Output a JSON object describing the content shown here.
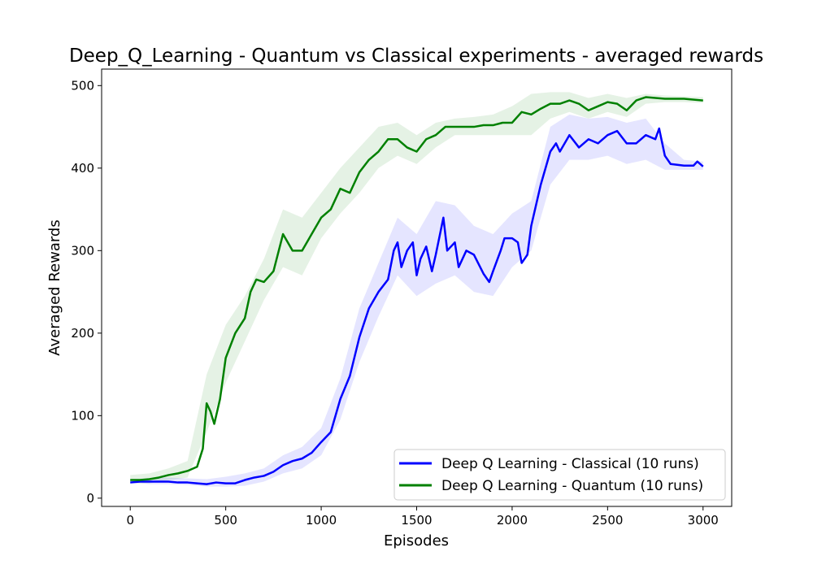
{
  "chart_data": {
    "type": "line",
    "title": "Deep_Q_Learning - Quantum vs Classical experiments - averaged rewards",
    "xlabel": "Episodes",
    "ylabel": "Averaged Rewards",
    "xlim": [
      -150,
      3150
    ],
    "ylim": [
      -10,
      520
    ],
    "xticks": [
      0,
      500,
      1000,
      1500,
      2000,
      2500,
      3000
    ],
    "yticks": [
      0,
      100,
      200,
      300,
      400,
      500
    ],
    "grid": false,
    "legend_position": "lower-right",
    "series": [
      {
        "name": "Deep Q Learning - Classical (10 runs)",
        "color": "#0000ff",
        "band_color": "#0000ff",
        "points": [
          [
            0,
            19
          ],
          [
            50,
            20
          ],
          [
            100,
            20
          ],
          [
            150,
            20
          ],
          [
            200,
            20
          ],
          [
            250,
            19
          ],
          [
            300,
            19
          ],
          [
            350,
            18
          ],
          [
            400,
            17
          ],
          [
            450,
            19
          ],
          [
            500,
            18
          ],
          [
            550,
            18
          ],
          [
            600,
            22
          ],
          [
            650,
            25
          ],
          [
            700,
            27
          ],
          [
            750,
            32
          ],
          [
            800,
            40
          ],
          [
            850,
            45
          ],
          [
            900,
            48
          ],
          [
            950,
            55
          ],
          [
            1000,
            68
          ],
          [
            1050,
            80
          ],
          [
            1100,
            120
          ],
          [
            1150,
            148
          ],
          [
            1200,
            195
          ],
          [
            1250,
            230
          ],
          [
            1300,
            250
          ],
          [
            1350,
            265
          ],
          [
            1380,
            300
          ],
          [
            1400,
            310
          ],
          [
            1420,
            280
          ],
          [
            1450,
            300
          ],
          [
            1480,
            310
          ],
          [
            1500,
            270
          ],
          [
            1520,
            290
          ],
          [
            1550,
            305
          ],
          [
            1580,
            275
          ],
          [
            1600,
            295
          ],
          [
            1640,
            340
          ],
          [
            1660,
            300
          ],
          [
            1700,
            310
          ],
          [
            1720,
            280
          ],
          [
            1760,
            300
          ],
          [
            1800,
            295
          ],
          [
            1850,
            272
          ],
          [
            1880,
            262
          ],
          [
            1900,
            275
          ],
          [
            1940,
            300
          ],
          [
            1960,
            315
          ],
          [
            2000,
            315
          ],
          [
            2030,
            310
          ],
          [
            2050,
            285
          ],
          [
            2080,
            295
          ],
          [
            2100,
            330
          ],
          [
            2150,
            380
          ],
          [
            2200,
            420
          ],
          [
            2230,
            430
          ],
          [
            2250,
            420
          ],
          [
            2300,
            440
          ],
          [
            2350,
            425
          ],
          [
            2400,
            435
          ],
          [
            2450,
            430
          ],
          [
            2500,
            440
          ],
          [
            2550,
            445
          ],
          [
            2600,
            430
          ],
          [
            2650,
            430
          ],
          [
            2700,
            440
          ],
          [
            2750,
            435
          ],
          [
            2770,
            448
          ],
          [
            2800,
            415
          ],
          [
            2830,
            405
          ],
          [
            2900,
            403
          ],
          [
            2950,
            403
          ],
          [
            2970,
            408
          ],
          [
            3000,
            402
          ]
        ],
        "band": [
          [
            0,
            19,
            23
          ],
          [
            100,
            17,
            24
          ],
          [
            200,
            17,
            25
          ],
          [
            300,
            16,
            24
          ],
          [
            400,
            14,
            23
          ],
          [
            500,
            14,
            26
          ],
          [
            600,
            15,
            30
          ],
          [
            700,
            20,
            36
          ],
          [
            800,
            30,
            52
          ],
          [
            900,
            36,
            62
          ],
          [
            1000,
            52,
            85
          ],
          [
            1100,
            95,
            145
          ],
          [
            1200,
            165,
            230
          ],
          [
            1300,
            220,
            285
          ],
          [
            1400,
            270,
            340
          ],
          [
            1500,
            245,
            320
          ],
          [
            1600,
            260,
            360
          ],
          [
            1700,
            270,
            355
          ],
          [
            1800,
            250,
            330
          ],
          [
            1900,
            245,
            320
          ],
          [
            2000,
            280,
            345
          ],
          [
            2100,
            300,
            360
          ],
          [
            2200,
            380,
            450
          ],
          [
            2300,
            410,
            465
          ],
          [
            2400,
            410,
            460
          ],
          [
            2500,
            415,
            462
          ],
          [
            2600,
            405,
            455
          ],
          [
            2700,
            410,
            460
          ],
          [
            2800,
            398,
            430
          ],
          [
            2900,
            398,
            410
          ],
          [
            3000,
            398,
            408
          ]
        ]
      },
      {
        "name": "Deep Q Learning - Quantum (10 runs)",
        "color": "#008000",
        "band_color": "#008000",
        "points": [
          [
            0,
            22
          ],
          [
            50,
            22
          ],
          [
            100,
            23
          ],
          [
            150,
            25
          ],
          [
            200,
            28
          ],
          [
            250,
            30
          ],
          [
            300,
            33
          ],
          [
            350,
            38
          ],
          [
            380,
            60
          ],
          [
            400,
            115
          ],
          [
            420,
            105
          ],
          [
            440,
            90
          ],
          [
            470,
            120
          ],
          [
            500,
            170
          ],
          [
            550,
            200
          ],
          [
            600,
            218
          ],
          [
            630,
            250
          ],
          [
            660,
            265
          ],
          [
            700,
            262
          ],
          [
            750,
            275
          ],
          [
            800,
            320
          ],
          [
            850,
            300
          ],
          [
            900,
            300
          ],
          [
            950,
            320
          ],
          [
            1000,
            340
          ],
          [
            1050,
            350
          ],
          [
            1100,
            375
          ],
          [
            1150,
            370
          ],
          [
            1200,
            395
          ],
          [
            1250,
            410
          ],
          [
            1300,
            420
          ],
          [
            1350,
            435
          ],
          [
            1400,
            435
          ],
          [
            1450,
            425
          ],
          [
            1500,
            420
          ],
          [
            1550,
            435
          ],
          [
            1600,
            440
          ],
          [
            1650,
            450
          ],
          [
            1700,
            450
          ],
          [
            1750,
            450
          ],
          [
            1800,
            450
          ],
          [
            1850,
            452
          ],
          [
            1900,
            452
          ],
          [
            1950,
            455
          ],
          [
            2000,
            455
          ],
          [
            2050,
            468
          ],
          [
            2100,
            465
          ],
          [
            2150,
            472
          ],
          [
            2200,
            478
          ],
          [
            2250,
            478
          ],
          [
            2300,
            482
          ],
          [
            2350,
            478
          ],
          [
            2400,
            470
          ],
          [
            2450,
            475
          ],
          [
            2500,
            480
          ],
          [
            2550,
            478
          ],
          [
            2600,
            470
          ],
          [
            2650,
            482
          ],
          [
            2700,
            486
          ],
          [
            2800,
            484
          ],
          [
            2900,
            484
          ],
          [
            3000,
            482
          ]
        ],
        "band": [
          [
            0,
            18,
            28
          ],
          [
            100,
            18,
            30
          ],
          [
            200,
            22,
            36
          ],
          [
            300,
            25,
            45
          ],
          [
            400,
            80,
            150
          ],
          [
            500,
            140,
            210
          ],
          [
            600,
            190,
            245
          ],
          [
            700,
            240,
            290
          ],
          [
            800,
            280,
            350
          ],
          [
            900,
            270,
            340
          ],
          [
            1000,
            315,
            370
          ],
          [
            1100,
            345,
            400
          ],
          [
            1200,
            370,
            425
          ],
          [
            1300,
            400,
            450
          ],
          [
            1400,
            415,
            455
          ],
          [
            1500,
            405,
            440
          ],
          [
            1600,
            425,
            455
          ],
          [
            1700,
            440,
            460
          ],
          [
            1800,
            440,
            462
          ],
          [
            1900,
            440,
            465
          ],
          [
            2000,
            440,
            475
          ],
          [
            2100,
            440,
            490
          ],
          [
            2200,
            460,
            492
          ],
          [
            2300,
            468,
            492
          ],
          [
            2400,
            460,
            485
          ],
          [
            2500,
            468,
            490
          ],
          [
            2600,
            462,
            485
          ],
          [
            2700,
            478,
            490
          ],
          [
            2800,
            480,
            488
          ],
          [
            2900,
            480,
            487
          ],
          [
            3000,
            479,
            486
          ]
        ]
      }
    ]
  }
}
